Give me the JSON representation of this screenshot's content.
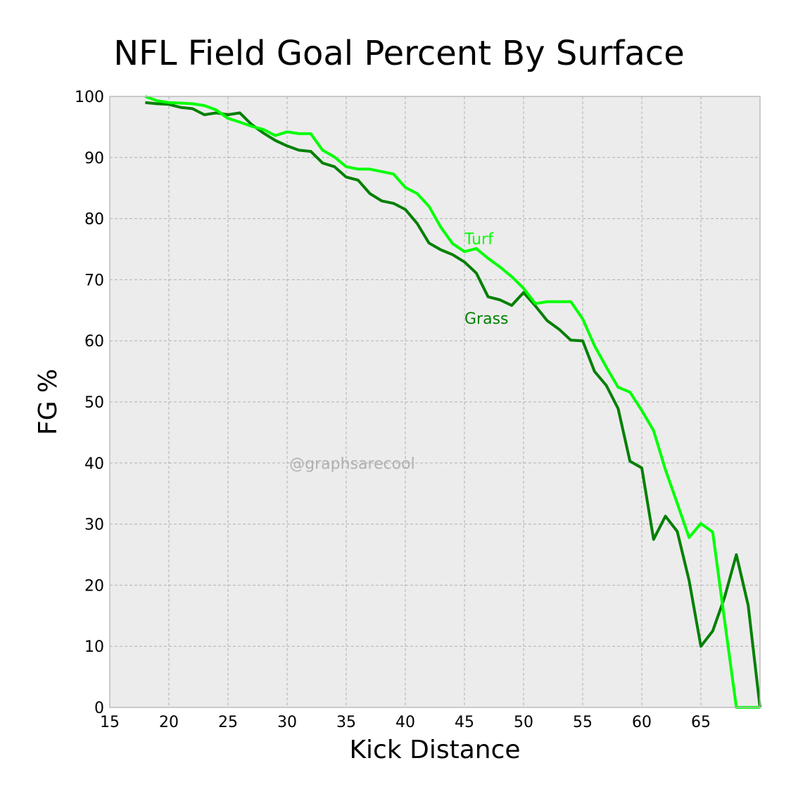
{
  "chart_data": {
    "type": "line",
    "title": "NFL Field Goal Percent By Surface",
    "xlabel": "Kick Distance",
    "ylabel": "FG %",
    "xlim": [
      15,
      70
    ],
    "ylim": [
      0,
      100
    ],
    "xticks": [
      15,
      20,
      25,
      30,
      35,
      40,
      45,
      50,
      55,
      60,
      65
    ],
    "yticks": [
      0,
      10,
      20,
      30,
      40,
      50,
      60,
      70,
      80,
      90,
      100
    ],
    "grid": true,
    "background": "#ececec",
    "watermark": "@graphsarecool",
    "series": [
      {
        "name": "Grass",
        "color": "#008000",
        "x": [
          18,
          19,
          20,
          21,
          22,
          23,
          24,
          25,
          26,
          27,
          28,
          29,
          30,
          31,
          32,
          33,
          34,
          35,
          36,
          37,
          38,
          39,
          40,
          41,
          42,
          43,
          44,
          45,
          46,
          47,
          48,
          49,
          50,
          51,
          52,
          53,
          54,
          55,
          56,
          57,
          58,
          59,
          60,
          61,
          62,
          63,
          64,
          65,
          66,
          67,
          68,
          69,
          70
        ],
        "y": [
          99.0,
          98.8,
          98.7,
          98.2,
          98.0,
          97.0,
          97.3,
          97.0,
          97.3,
          95.4,
          94.0,
          92.8,
          91.9,
          91.2,
          91.0,
          89.1,
          88.5,
          86.8,
          86.3,
          84.1,
          82.9,
          82.5,
          81.5,
          79.2,
          76.0,
          74.9,
          74.1,
          72.9,
          71.1,
          67.2,
          66.7,
          65.8,
          67.9,
          65.7,
          63.3,
          61.9,
          60.1,
          60.0,
          55.0,
          52.7,
          48.9,
          40.3,
          39.2,
          27.5,
          31.3,
          28.8,
          20.8,
          10.0,
          12.5,
          18.0,
          25.0,
          16.7,
          0.0
        ]
      },
      {
        "name": "Turf",
        "color": "#00ff00",
        "x": [
          18,
          19,
          20,
          21,
          22,
          23,
          24,
          25,
          26,
          27,
          28,
          29,
          30,
          31,
          32,
          33,
          34,
          35,
          36,
          37,
          38,
          39,
          40,
          41,
          42,
          43,
          44,
          45,
          46,
          47,
          48,
          49,
          50,
          51,
          52,
          53,
          54,
          55,
          56,
          57,
          58,
          59,
          60,
          61,
          62,
          63,
          64,
          65,
          66,
          67,
          68,
          69,
          70
        ],
        "y": [
          100.0,
          99.3,
          99.0,
          98.9,
          98.8,
          98.5,
          97.8,
          96.4,
          95.8,
          95.1,
          94.6,
          93.6,
          94.2,
          93.9,
          93.9,
          91.2,
          90.1,
          88.5,
          88.1,
          88.1,
          87.7,
          87.3,
          85.1,
          84.1,
          82.0,
          78.6,
          75.9,
          74.6,
          75.1,
          73.5,
          72.1,
          70.5,
          68.6,
          66.1,
          66.4,
          66.4,
          66.4,
          63.6,
          59.2,
          55.7,
          52.4,
          51.6,
          48.6,
          45.3,
          38.9,
          33.4,
          27.8,
          30.1,
          28.7,
          14.3,
          0.0,
          0.0,
          0.0
        ]
      }
    ],
    "annotations": [
      {
        "text": "Turf",
        "x": 45,
        "y": 76.7,
        "color": "#00ff00"
      },
      {
        "text": "Grass",
        "x": 45,
        "y": 63.7,
        "color": "#008000"
      }
    ]
  }
}
